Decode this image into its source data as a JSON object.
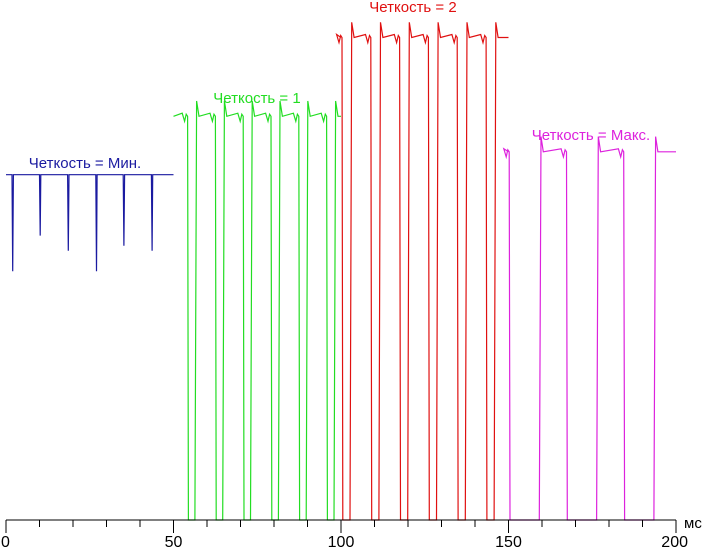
{
  "chart_data": {
    "type": "line",
    "title": "",
    "xlabel": "мс",
    "ylabel": "",
    "xlim": [
      0,
      200
    ],
    "ylim": [
      0,
      1.02
    ],
    "grid": false,
    "legend": "none",
    "x_ticks": [
      0,
      50,
      100,
      150,
      200
    ],
    "x_tick_labels": [
      "0",
      "50",
      "100",
      "150",
      "200"
    ],
    "series": [
      {
        "name": "Четкость = Мин.",
        "color": "#1a1aa0",
        "x_range": [
          0,
          50
        ],
        "high_level": 0.68,
        "points": [
          [
            0,
            0.68
          ],
          [
            1.8,
            0.68
          ],
          [
            2,
            0.49
          ],
          [
            2.2,
            0.68
          ],
          [
            10,
            0.68
          ],
          [
            10.2,
            0.56
          ],
          [
            10.4,
            0.68
          ],
          [
            18.4,
            0.68
          ],
          [
            18.6,
            0.53
          ],
          [
            18.8,
            0.68
          ],
          [
            26.8,
            0.68
          ],
          [
            27,
            0.49
          ],
          [
            27.2,
            0.68
          ],
          [
            35,
            0.68
          ],
          [
            35.2,
            0.54
          ],
          [
            35.4,
            0.68
          ],
          [
            43.4,
            0.68
          ],
          [
            43.6,
            0.53
          ],
          [
            43.8,
            0.68
          ],
          [
            50,
            0.68
          ]
        ]
      },
      {
        "name": "Четкость = 1",
        "color": "#22dd22",
        "x_range": [
          50,
          100
        ],
        "high_level": 0.795,
        "period_ms": 8.3,
        "low_ms": 2.2,
        "first_fall_ms": 54.2
      },
      {
        "name": "Четкость = 2",
        "color": "#e01010",
        "x_range": [
          100,
          150
        ],
        "high_level": 0.95,
        "period_ms": 8.6,
        "low_ms": 2.4,
        "first_fall_ms": 100.3
      },
      {
        "name": "Четкость = Макс.",
        "color": "#dd22dd",
        "x_range": [
          150,
          200
        ],
        "high_level": 0.725,
        "period_ms": 17.1,
        "low_ms": 9.0,
        "first_fall_ms": 150.2
      }
    ],
    "annotations": [
      {
        "text": "Четкость = Мин.",
        "series": 0
      },
      {
        "text": "Четкость = 1",
        "series": 1
      },
      {
        "text": "Четкость = 2",
        "series": 2
      },
      {
        "text": "Четкость = Макс.",
        "series": 3
      }
    ]
  }
}
